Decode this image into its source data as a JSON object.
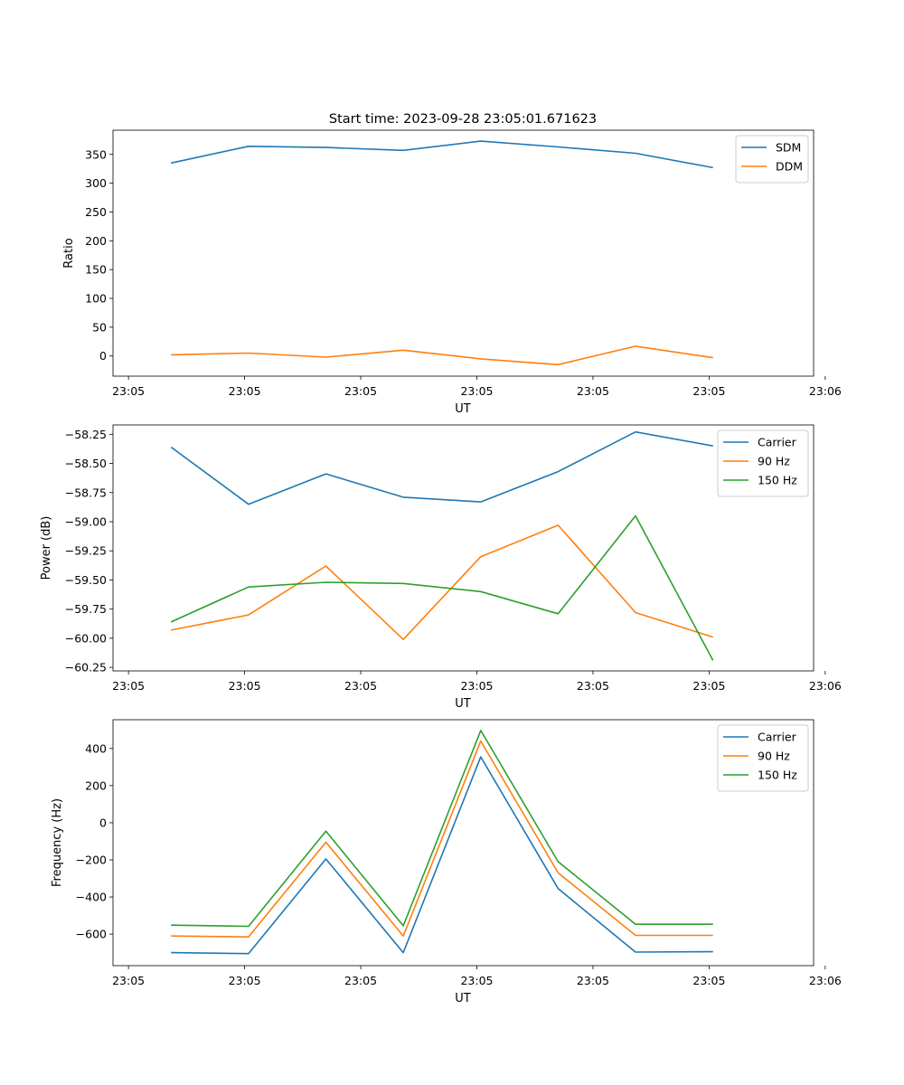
{
  "figure_title": "Start time: 2023-09-28 23:05:01.671623",
  "chart_data": [
    {
      "type": "line",
      "title": "Start time: 2023-09-28 23:05:01.671623",
      "xlabel": "UT",
      "ylabel": "Ratio",
      "x": [
        1,
        2,
        3,
        4,
        5,
        6,
        7,
        8
      ],
      "xlim": [
        0.25,
        9.3
      ],
      "xticks": [
        0.45,
        1.95,
        3.45,
        4.95,
        6.45,
        7.95,
        9.45
      ],
      "xtick_labels": [
        "23:05",
        "23:05",
        "23:05",
        "23:05",
        "23:05",
        "23:05",
        "23:06"
      ],
      "ylim": [
        -35,
        392
      ],
      "yticks": [
        0,
        50,
        100,
        150,
        200,
        250,
        300,
        350
      ],
      "ytick_labels": [
        "0",
        "50",
        "100",
        "150",
        "200",
        "250",
        "300",
        "350"
      ],
      "legend_position": "top-right",
      "series": [
        {
          "name": "SDM",
          "color": "#1f77b4",
          "values": [
            335,
            364,
            362,
            357,
            373,
            363,
            352,
            327
          ]
        },
        {
          "name": "DDM",
          "color": "#ff7f0e",
          "values": [
            2,
            5,
            -2,
            10,
            -5,
            -15,
            17,
            -3
          ]
        }
      ]
    },
    {
      "type": "line",
      "title": "",
      "xlabel": "UT",
      "ylabel": "Power (dB)",
      "x": [
        1,
        2,
        3,
        4,
        5,
        6,
        7,
        8
      ],
      "xlim": [
        0.25,
        9.3
      ],
      "xticks": [
        0.45,
        1.95,
        3.45,
        4.95,
        6.45,
        7.95,
        9.45
      ],
      "xtick_labels": [
        "23:05",
        "23:05",
        "23:05",
        "23:05",
        "23:05",
        "23:05",
        "23:06"
      ],
      "ylim": [
        -60.28,
        -58.17
      ],
      "yticks": [
        -60.25,
        -60.0,
        -59.75,
        -59.5,
        -59.25,
        -59.0,
        -58.75,
        -58.5,
        -58.25
      ],
      "ytick_labels": [
        "−60.25",
        "−60.00",
        "−59.75",
        "−59.50",
        "−59.25",
        "−59.00",
        "−58.75",
        "−58.50",
        "−58.25"
      ],
      "legend_position": "top-right",
      "series": [
        {
          "name": "Carrier",
          "color": "#1f77b4",
          "values": [
            -58.36,
            -58.85,
            -58.59,
            -58.79,
            -58.83,
            -58.57,
            -58.23,
            -58.35
          ]
        },
        {
          "name": "90 Hz",
          "color": "#ff7f0e",
          "values": [
            -59.93,
            -59.8,
            -59.38,
            -60.01,
            -59.3,
            -59.03,
            -59.78,
            -59.99
          ]
        },
        {
          "name": "150 Hz",
          "color": "#2ca02c",
          "values": [
            -59.86,
            -59.56,
            -59.52,
            -59.53,
            -59.6,
            -59.79,
            -58.95,
            -60.19
          ]
        }
      ]
    },
    {
      "type": "line",
      "title": "",
      "xlabel": "UT",
      "ylabel": "Frequency (Hz)",
      "x": [
        1,
        2,
        3,
        4,
        5,
        6,
        7,
        8
      ],
      "xlim": [
        0.25,
        9.3
      ],
      "xticks": [
        0.45,
        1.95,
        3.45,
        4.95,
        6.45,
        7.95,
        9.45
      ],
      "xtick_labels": [
        "23:05",
        "23:05",
        "23:05",
        "23:05",
        "23:05",
        "23:05",
        "23:06"
      ],
      "ylim": [
        -770,
        555
      ],
      "yticks": [
        -600,
        -400,
        -200,
        0,
        200,
        400
      ],
      "ytick_labels": [
        "−600",
        "−400",
        "−200",
        "0",
        "200",
        "400"
      ],
      "legend_position": "top-right",
      "series": [
        {
          "name": "Carrier",
          "color": "#1f77b4",
          "values": [
            -700,
            -705,
            -195,
            -700,
            355,
            -355,
            -697,
            -695
          ]
        },
        {
          "name": "90 Hz",
          "color": "#ff7f0e",
          "values": [
            -610,
            -615,
            -105,
            -610,
            440,
            -270,
            -607,
            -607
          ]
        },
        {
          "name": "150 Hz",
          "color": "#2ca02c",
          "values": [
            -552,
            -558,
            -45,
            -555,
            497,
            -210,
            -547,
            -547
          ]
        }
      ]
    }
  ]
}
